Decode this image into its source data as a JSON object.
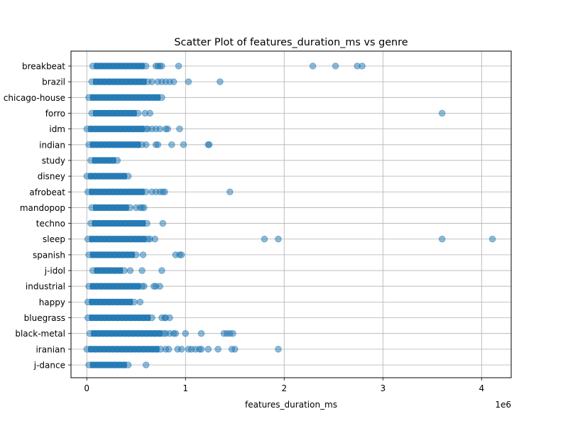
{
  "chart_data": {
    "type": "scatter",
    "title": "Scatter Plot of features_duration_ms vs genre",
    "xlabel": "features_duration_ms",
    "ylabel": "",
    "x_offset_label": "1e6",
    "xlim": [
      -160000,
      4300000
    ],
    "x_ticks": [
      0,
      1000000,
      2000000,
      3000000,
      4000000
    ],
    "x_tick_labels": [
      "0",
      "1",
      "2",
      "3",
      "4"
    ],
    "grid": true,
    "legend": "none",
    "marker_color": "#1f77b4",
    "marker_alpha": 0.5,
    "categories": [
      "breakbeat",
      "brazil",
      "chicago-house",
      "forro",
      "idm",
      "indian",
      "study",
      "disney",
      "afrobeat",
      "mandopop",
      "techno",
      "sleep",
      "spanish",
      "j-idol",
      "industrial",
      "happy",
      "bluegrass",
      "black-metal",
      "iranian",
      "j-dance"
    ],
    "series": [
      {
        "genre": "breakbeat",
        "range": [
          60000,
          600000
        ],
        "x": [
          700000,
          720000,
          740000,
          760000,
          930000,
          2290000,
          2520000,
          2740000,
          2790000
        ]
      },
      {
        "genre": "brazil",
        "range": [
          50000,
          620000
        ],
        "x": [
          660000,
          720000,
          760000,
          800000,
          840000,
          880000,
          1030000,
          1350000
        ]
      },
      {
        "genre": "chicago-house",
        "range": [
          20000,
          760000
        ],
        "x": []
      },
      {
        "genre": "forro",
        "range": [
          50000,
          520000
        ],
        "x": [
          590000,
          640000,
          3600000
        ]
      },
      {
        "genre": "idm",
        "range": [
          0,
          600000
        ],
        "x": [
          620000,
          660000,
          700000,
          740000,
          800000,
          820000,
          940000
        ]
      },
      {
        "genre": "indian",
        "range": [
          20000,
          560000
        ],
        "x": [
          600000,
          700000,
          720000,
          860000,
          980000,
          1230000,
          1240000
        ]
      },
      {
        "genre": "study",
        "range": [
          40000,
          310000
        ],
        "x": []
      },
      {
        "genre": "disney",
        "range": [
          0,
          420000
        ],
        "x": []
      },
      {
        "genre": "afrobeat",
        "range": [
          10000,
          600000
        ],
        "x": [
          660000,
          700000,
          740000,
          770000,
          790000,
          1450000
        ]
      },
      {
        "genre": "mandopop",
        "range": [
          50000,
          440000
        ],
        "x": [
          500000,
          540000,
          560000,
          580000
        ]
      },
      {
        "genre": "techno",
        "range": [
          40000,
          610000
        ],
        "x": [
          770000
        ]
      },
      {
        "genre": "sleep",
        "range": [
          10000,
          620000
        ],
        "x": [
          640000,
          690000,
          1800000,
          1940000,
          3600000,
          4110000
        ]
      },
      {
        "genre": "spanish",
        "range": [
          20000,
          500000
        ],
        "x": [
          570000,
          900000,
          940000,
          960000
        ]
      },
      {
        "genre": "j-idol",
        "range": [
          60000,
          380000
        ],
        "x": [
          440000,
          560000,
          760000
        ]
      },
      {
        "genre": "industrial",
        "range": [
          20000,
          560000
        ],
        "x": [
          580000,
          680000,
          700000,
          740000
        ]
      },
      {
        "genre": "happy",
        "range": [
          10000,
          480000
        ],
        "x": [
          540000
        ]
      },
      {
        "genre": "bluegrass",
        "range": [
          10000,
          660000
        ],
        "x": [
          760000,
          790000,
          800000,
          840000
        ]
      },
      {
        "genre": "black-metal",
        "range": [
          30000,
          780000
        ],
        "x": [
          800000,
          840000,
          880000,
          900000,
          1000000,
          1160000,
          1390000,
          1420000,
          1450000,
          1480000
        ]
      },
      {
        "genre": "iranian",
        "range": [
          0,
          750000
        ],
        "x": [
          800000,
          830000,
          920000,
          960000,
          1030000,
          1060000,
          1100000,
          1140000,
          1160000,
          1230000,
          1330000,
          1470000,
          1500000,
          1940000
        ]
      },
      {
        "genre": "j-dance",
        "range": [
          20000,
          420000
        ],
        "x": [
          600000
        ]
      }
    ]
  }
}
